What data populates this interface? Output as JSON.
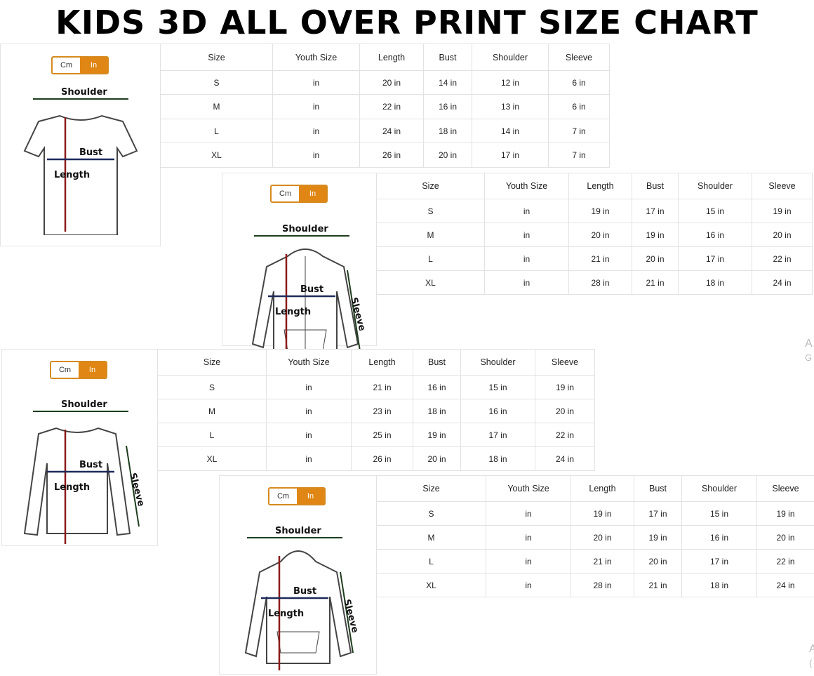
{
  "title": "KIDS 3D ALL OVER PRINT SIZE CHART",
  "unit_toggle": {
    "cm": "Cm",
    "in": "In",
    "selected": "In",
    "accent": "#e08614"
  },
  "measure_labels": {
    "shoulder": "Shoulder",
    "bust": "Bust",
    "length": "Length",
    "sleeve": "Sleeve"
  },
  "headers": [
    "Size",
    "Youth Size",
    "Length",
    "Bust",
    "Shoulder",
    "Sleeve"
  ],
  "panels": [
    {
      "garment": "t-shirt",
      "rows": [
        [
          "S",
          "in",
          "20 in",
          "14 in",
          "12 in",
          "6 in"
        ],
        [
          "M",
          "in",
          "22 in",
          "16 in",
          "13 in",
          "6 in"
        ],
        [
          "L",
          "in",
          "24 in",
          "18 in",
          "14 in",
          "7 in"
        ],
        [
          "XL",
          "in",
          "26 in",
          "20 in",
          "17 in",
          "7 in"
        ]
      ]
    },
    {
      "garment": "zip-hoodie",
      "rows": [
        [
          "S",
          "in",
          "19 in",
          "17 in",
          "15 in",
          "19 in"
        ],
        [
          "M",
          "in",
          "20 in",
          "19 in",
          "16 in",
          "20 in"
        ],
        [
          "L",
          "in",
          "21 in",
          "20 in",
          "17 in",
          "22 in"
        ],
        [
          "XL",
          "in",
          "28 in",
          "21 in",
          "18 in",
          "24 in"
        ]
      ]
    },
    {
      "garment": "long-sleeve",
      "rows": [
        [
          "S",
          "in",
          "21 in",
          "16 in",
          "15 in",
          "19 in"
        ],
        [
          "M",
          "in",
          "23 in",
          "18 in",
          "16 in",
          "20 in"
        ],
        [
          "L",
          "in",
          "25 in",
          "19 in",
          "17 in",
          "22 in"
        ],
        [
          "XL",
          "in",
          "26 in",
          "20 in",
          "18 in",
          "24 in"
        ]
      ]
    },
    {
      "garment": "pullover-hoodie",
      "rows": [
        [
          "S",
          "in",
          "19 in",
          "17 in",
          "15 in",
          "19 in"
        ],
        [
          "M",
          "in",
          "20 in",
          "19 in",
          "16 in",
          "20 in"
        ],
        [
          "L",
          "in",
          "21 in",
          "20 in",
          "17 in",
          "22 in"
        ],
        [
          "XL",
          "in",
          "28 in",
          "21 in",
          "18 in",
          "24 in"
        ]
      ]
    }
  ],
  "watermark": [
    {
      "line1": "A",
      "line2": "G"
    },
    {
      "line1": "A",
      "line2": "("
    }
  ]
}
